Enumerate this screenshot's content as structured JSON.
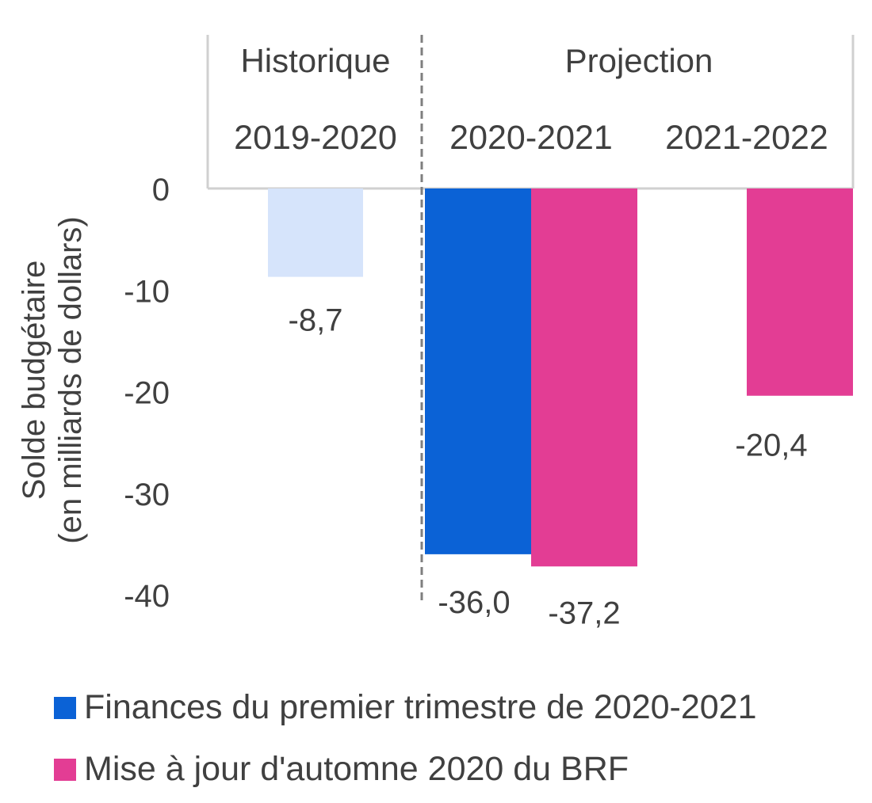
{
  "chart_data": {
    "type": "bar",
    "ylabel": "Solde budgétaire\n(en milliards de dollars)",
    "ylim": [
      -40,
      0
    ],
    "yticks": [
      0,
      -10,
      -20,
      -30,
      -40
    ],
    "ytick_labels": [
      "0",
      "-10",
      "-20",
      "-30",
      "-40"
    ],
    "period_groups": [
      {
        "label": "Historique",
        "categories": [
          "2019-2020"
        ]
      },
      {
        "label": "Projection",
        "categories": [
          "2020-2021",
          "2021-2022"
        ]
      }
    ],
    "categories": [
      "2019-2020",
      "2020-2021",
      "2021-2022"
    ],
    "series": [
      {
        "name": "Finances du premier trimestre de 2020-2021",
        "color": "#0B62D6",
        "values": [
          null,
          -36.0,
          null
        ],
        "labels": [
          null,
          "-36,0",
          null
        ]
      },
      {
        "name": "Mise à jour d'automne 2020 du BRF",
        "color": "#E33D94",
        "values": [
          null,
          -37.2,
          -20.4
        ],
        "labels": [
          null,
          "-37,2",
          "-20,4"
        ]
      }
    ],
    "historical": {
      "category": "2019-2020",
      "value": -8.7,
      "label": "-8,7",
      "color": "#D6E4FB"
    },
    "legend_position": "bottom-left",
    "grid": false
  }
}
